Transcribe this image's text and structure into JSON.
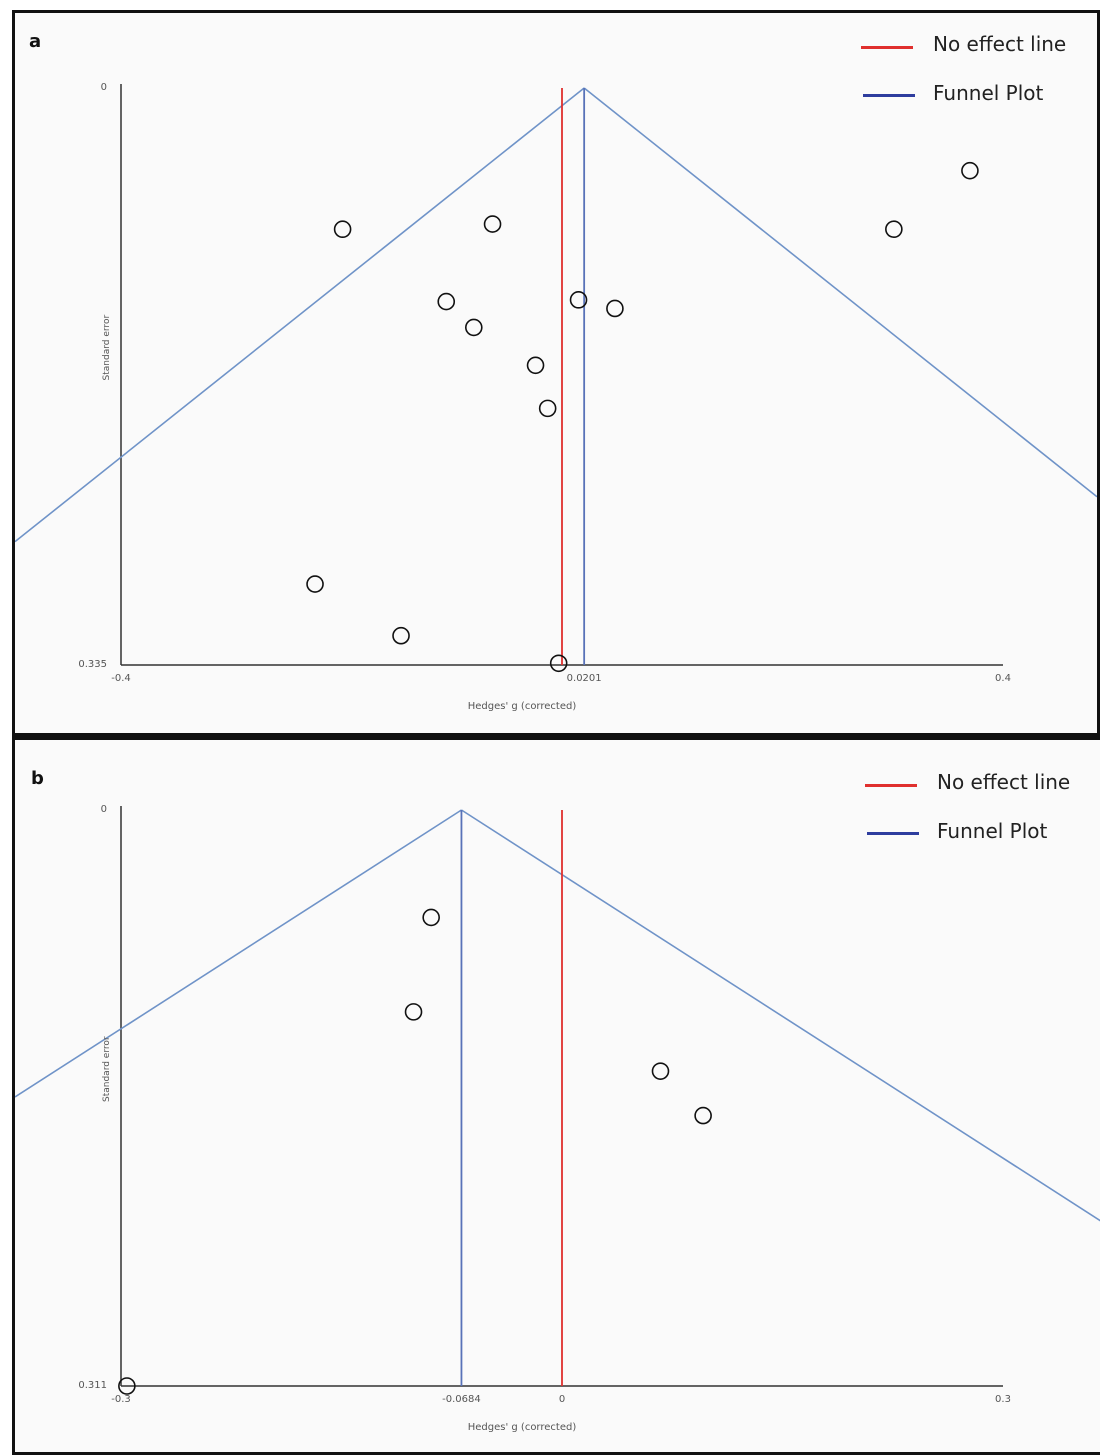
{
  "chart_data": [
    {
      "panel": "a",
      "type": "scatter",
      "legend": [
        {
          "label": "No effect line",
          "color": "#e0302e"
        },
        {
          "label": "Funnel Plot",
          "color": "#2e3d9e"
        }
      ],
      "xlabel": "Hedges' g (corrected)",
      "ylabel": "Standard error",
      "xlim": [
        -0.4,
        0.4
      ],
      "ylim": [
        0,
        0.335
      ],
      "y_inverted": true,
      "x_ticks": [
        "-0.4",
        "0.0201",
        "0.4"
      ],
      "y_ticks": [
        "0",
        "0.335"
      ],
      "no_effect_x": 0,
      "pooled_estimate": 0.0201,
      "points": [
        {
          "x": -0.199,
          "y": 0.082
        },
        {
          "x": -0.063,
          "y": 0.079
        },
        {
          "x": -0.105,
          "y": 0.124
        },
        {
          "x": -0.08,
          "y": 0.139
        },
        {
          "x": -0.024,
          "y": 0.161
        },
        {
          "x": -0.013,
          "y": 0.186
        },
        {
          "x": 0.015,
          "y": 0.123
        },
        {
          "x": 0.048,
          "y": 0.128
        },
        {
          "x": 0.301,
          "y": 0.082
        },
        {
          "x": 0.37,
          "y": 0.048
        },
        {
          "x": -0.224,
          "y": 0.288
        },
        {
          "x": -0.146,
          "y": 0.318
        },
        {
          "x": -0.003,
          "y": 0.334
        }
      ]
    },
    {
      "panel": "b",
      "type": "scatter",
      "legend": [
        {
          "label": "No effect line",
          "color": "#e0302e"
        },
        {
          "label": "Funnel Plot",
          "color": "#2e3d9e"
        }
      ],
      "xlabel": "Hedges' g (corrected)",
      "ylabel": "Standard error",
      "xlim": [
        -0.3,
        0.3
      ],
      "ylim": [
        0,
        0.311
      ],
      "y_inverted": true,
      "x_ticks": [
        "-0.3",
        "-0.0684",
        "0",
        "0.3"
      ],
      "y_ticks": [
        "0",
        "0.311"
      ],
      "no_effect_x": 0,
      "pooled_estimate": -0.0684,
      "points": [
        {
          "x": -0.089,
          "y": 0.058
        },
        {
          "x": -0.101,
          "y": 0.109
        },
        {
          "x": 0.067,
          "y": 0.141
        },
        {
          "x": 0.096,
          "y": 0.165
        },
        {
          "x": -0.296,
          "y": 0.311
        }
      ]
    }
  ],
  "panels": {
    "a": {
      "label": "a"
    },
    "b": {
      "label": "b"
    }
  }
}
